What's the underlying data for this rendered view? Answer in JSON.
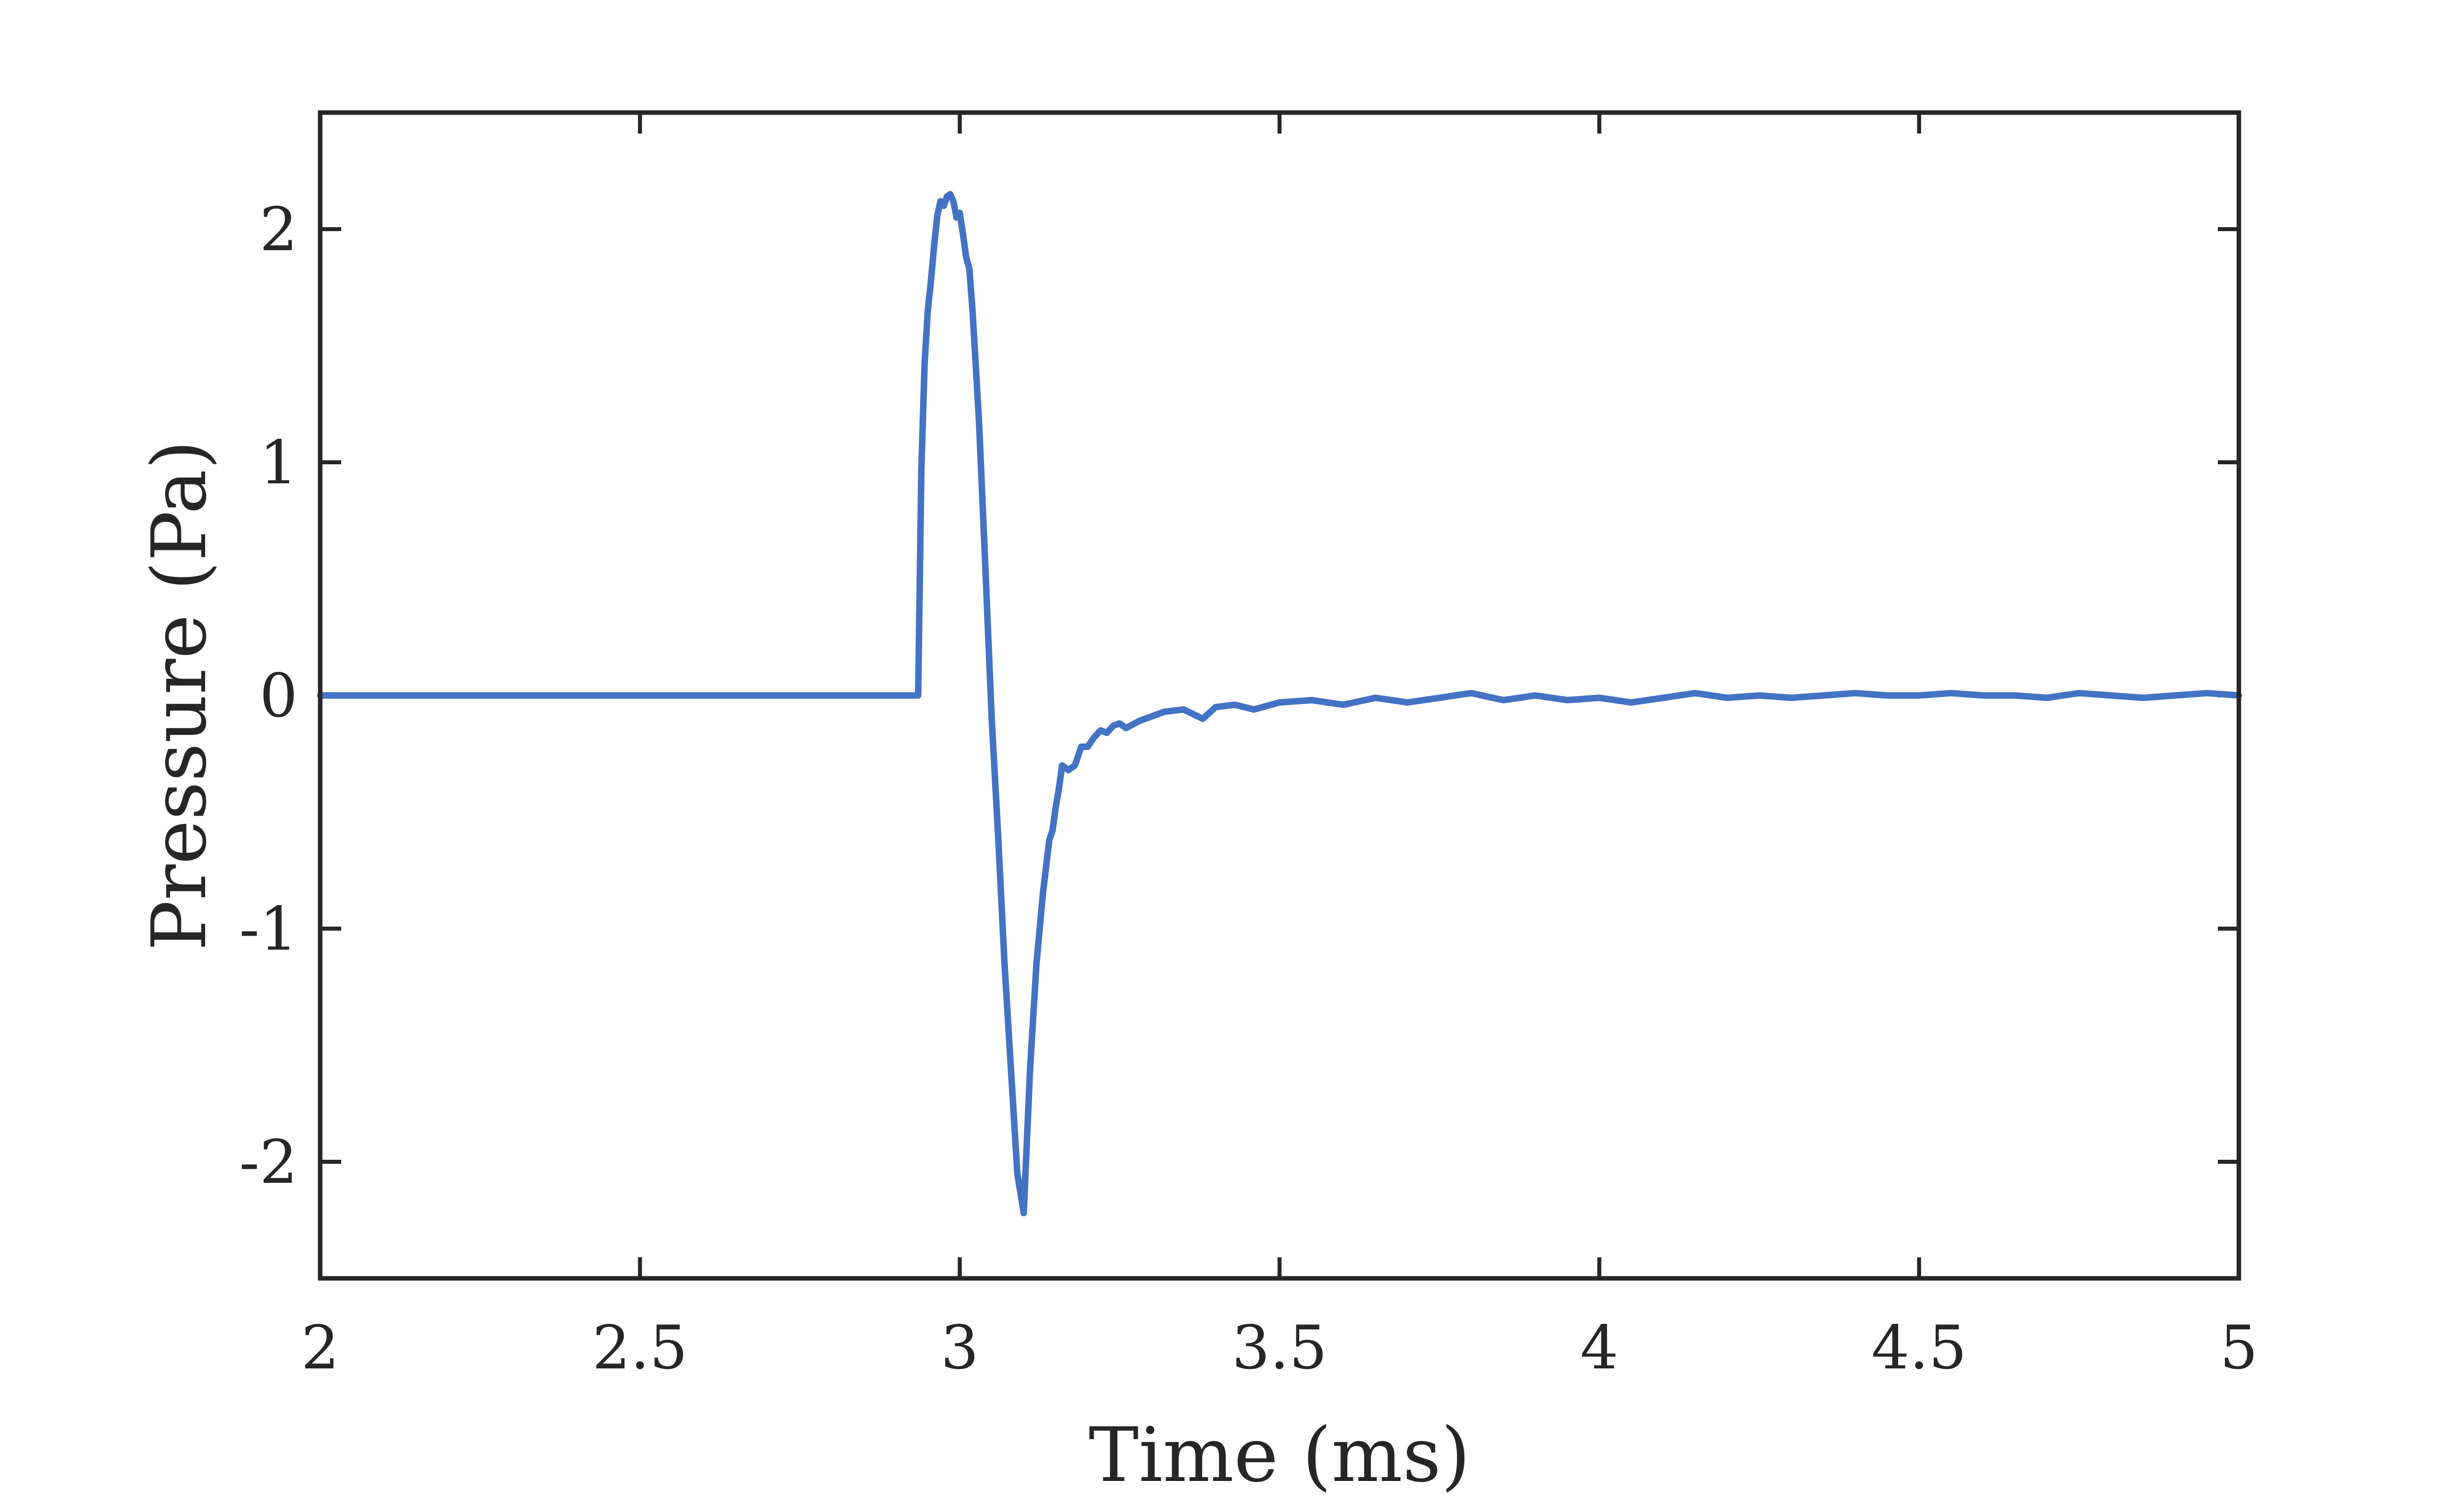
{
  "chart_data": {
    "type": "line",
    "title": "",
    "xlabel": "Time (ms)",
    "ylabel": "Pressure (Pa)",
    "xlim": [
      2,
      5
    ],
    "ylim": [
      -2.5,
      2.5
    ],
    "xticks": [
      2,
      2.5,
      3,
      3.5,
      4,
      4.5,
      5
    ],
    "xtick_labels": [
      "2",
      "2.5",
      "3",
      "3.5",
      "4",
      "4.5",
      "5"
    ],
    "yticks": [
      -2,
      -1,
      0,
      1,
      2
    ],
    "ytick_labels": [
      "-2",
      "-1",
      "0",
      "1",
      "2"
    ],
    "grid": false,
    "legend": "none",
    "colors": {
      "line": "#4472C4",
      "axes": "#262626"
    },
    "series": [
      {
        "x": [
          2.0,
          2.5,
          2.93,
          2.935,
          2.94,
          2.945,
          2.95,
          2.955,
          2.96,
          2.965,
          2.97,
          2.975,
          2.98,
          2.985,
          2.99,
          2.995,
          3.0,
          3.005,
          3.01,
          3.015,
          3.02,
          3.03,
          3.04,
          3.05,
          3.06,
          3.07,
          3.08,
          3.09,
          3.1,
          3.11,
          3.12,
          3.13,
          3.14,
          3.145,
          3.15,
          3.155,
          3.16,
          3.17,
          3.18,
          3.19,
          3.2,
          3.21,
          3.22,
          3.23,
          3.24,
          3.25,
          3.26,
          3.28,
          3.3,
          3.32,
          3.35,
          3.38,
          3.4,
          3.43,
          3.46,
          3.5,
          3.55,
          3.6,
          3.65,
          3.7,
          3.75,
          3.8,
          3.85,
          3.9,
          3.95,
          4.0,
          4.05,
          4.1,
          4.15,
          4.2,
          4.25,
          4.3,
          4.35,
          4.4,
          4.45,
          4.5,
          4.55,
          4.6,
          4.65,
          4.7,
          4.75,
          4.8,
          4.85,
          4.9,
          4.95,
          5.0
        ],
        "y": [
          0.0,
          0.0,
          0.0,
          0.0,
          0.97,
          1.42,
          1.65,
          1.78,
          1.93,
          2.06,
          2.12,
          2.1,
          2.14,
          2.15,
          2.12,
          2.05,
          2.07,
          1.98,
          1.88,
          1.83,
          1.65,
          1.18,
          0.55,
          -0.1,
          -0.6,
          -1.15,
          -1.6,
          -2.05,
          -2.22,
          -1.6,
          -1.15,
          -0.85,
          -0.62,
          -0.58,
          -0.48,
          -0.4,
          -0.3,
          -0.32,
          -0.3,
          -0.22,
          -0.22,
          -0.18,
          -0.15,
          -0.16,
          -0.13,
          -0.12,
          -0.14,
          -0.11,
          -0.09,
          -0.07,
          -0.06,
          -0.1,
          -0.05,
          -0.04,
          -0.06,
          -0.03,
          -0.02,
          -0.04,
          -0.01,
          -0.03,
          -0.01,
          0.01,
          -0.02,
          0.0,
          -0.02,
          -0.01,
          -0.03,
          -0.01,
          0.01,
          -0.01,
          0.0,
          -0.01,
          0.0,
          0.01,
          0.0,
          0.0,
          0.01,
          0.0,
          0.0,
          -0.01,
          0.01,
          0.0,
          -0.01,
          0.0,
          0.01,
          0.0
        ]
      }
    ]
  }
}
